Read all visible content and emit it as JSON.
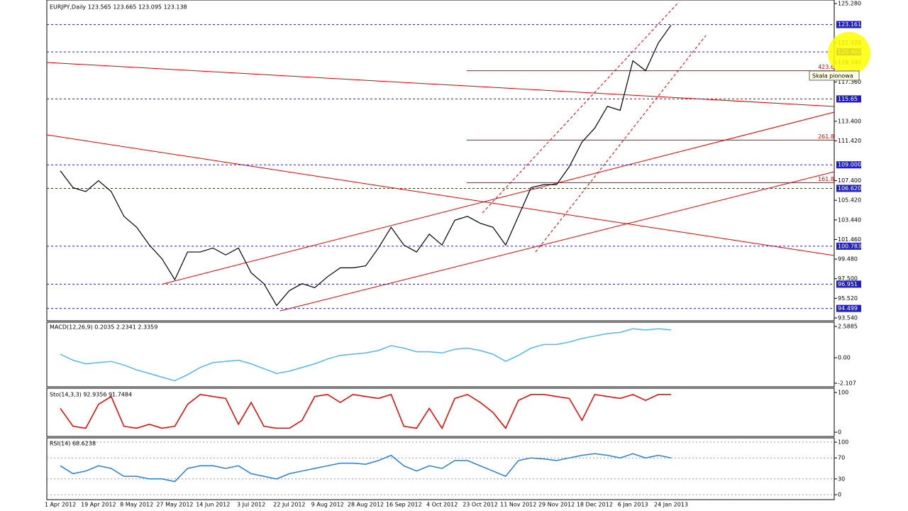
{
  "chart_data": [
    {
      "type": "line",
      "title": "EURJPY,Daily  123.565 123.665 123.095 123.138",
      "color": "#000000",
      "categories": [
        "1 Apr 2012",
        null,
        null,
        "19 Apr 2012",
        null,
        null,
        "8 May 2012",
        null,
        null,
        "27 May 2012",
        null,
        null,
        "14 Jun 2012",
        null,
        null,
        "3 Jul 2012",
        null,
        null,
        "22 Jul 2012",
        null,
        null,
        "9 Aug 2012",
        null,
        null,
        "28 Aug 2012",
        null,
        null,
        "16 Sep 2012",
        null,
        null,
        "4 Oct 2012",
        null,
        null,
        "23 Oct 2012",
        null,
        null,
        "11 Nov 2012",
        null,
        null,
        "29 Nov 2012",
        null,
        null,
        "18 Dec 2012",
        null,
        null,
        "6 Jan 2013",
        null,
        null,
        "24 Jan 2013"
      ],
      "values": [
        108.4,
        106.7,
        106.3,
        107.4,
        106.3,
        103.8,
        102.7,
        100.9,
        99.5,
        97.4,
        100.2,
        100.2,
        100.6,
        99.9,
        100.6,
        98.1,
        97.0,
        94.8,
        96.3,
        97.0,
        96.6,
        97.7,
        98.6,
        98.6,
        98.8,
        100.6,
        102.7,
        100.9,
        100.2,
        102.0,
        100.9,
        103.4,
        103.8,
        103.1,
        102.7,
        100.9,
        103.8,
        106.7,
        107.0,
        107.0,
        108.8,
        111.3,
        112.7,
        114.9,
        114.5,
        119.5,
        118.5,
        121.3,
        123.1
      ],
      "ylim": [
        93.54,
        125.28
      ],
      "yticks": [
        {
          "value": 125.28,
          "label": "125.280"
        },
        {
          "value": 121.32,
          "label": "121.320"
        },
        {
          "value": 119.34,
          "label": "119.340"
        },
        {
          "value": 117.36,
          "label": "117.360"
        },
        {
          "value": 113.4,
          "label": "113.400"
        },
        {
          "value": 111.42,
          "label": "111.420"
        },
        {
          "value": 107.4,
          "label": "107.400"
        },
        {
          "value": 105.42,
          "label": "105.420"
        },
        {
          "value": 103.44,
          "label": "103.440"
        },
        {
          "value": 101.46,
          "label": "101.460"
        },
        {
          "value": 99.48,
          "label": "99.480"
        },
        {
          "value": 97.5,
          "label": "97.500"
        },
        {
          "value": 95.52,
          "label": "95.520"
        },
        {
          "value": 93.54,
          "label": "93.540"
        }
      ],
      "levels": [
        123.161,
        120.402,
        115.65,
        {
          "value": 109.0,
          "label": "109.000"
        },
        {
          "value": 106.62,
          "label": "106.620"
        },
        100.783,
        96.951,
        94.499
      ],
      "fibo": [
        {
          "value": 118.5,
          "label": "423.6"
        },
        {
          "value": 111.5,
          "label": "261.8"
        },
        {
          "value": 107.2,
          "label": "161.8"
        }
      ],
      "tooltip": "Skala pionowa"
    },
    {
      "type": "line",
      "title": "MACD(12,26,9) 0.2035 2.2341 2.3359",
      "color": "#57b7e6",
      "values": [
        0.3,
        -0.2,
        -0.5,
        -0.4,
        -0.3,
        -0.6,
        -1.0,
        -1.3,
        -1.6,
        -1.9,
        -1.4,
        -0.8,
        -0.4,
        -0.3,
        -0.2,
        -0.5,
        -0.9,
        -1.3,
        -1.1,
        -0.8,
        -0.5,
        -0.1,
        0.2,
        0.3,
        0.4,
        0.6,
        1.0,
        0.8,
        0.5,
        0.5,
        0.4,
        0.7,
        0.8,
        0.6,
        0.3,
        -0.3,
        0.2,
        0.8,
        1.1,
        1.1,
        1.3,
        1.6,
        1.8,
        2.0,
        2.1,
        2.4,
        2.3,
        2.4,
        2.3
      ],
      "ylim": [
        -2.107,
        2.5885
      ],
      "yticks": [
        2.5885,
        {
          "value": 0,
          "label": "0.00"
        },
        -2.107
      ]
    },
    {
      "type": "line",
      "title": "Sto(14,3,3) 92.9356 91.7484",
      "color": "#e00000",
      "values": [
        60,
        15,
        10,
        70,
        90,
        15,
        10,
        20,
        10,
        15,
        70,
        95,
        90,
        85,
        20,
        75,
        15,
        10,
        10,
        30,
        90,
        95,
        75,
        95,
        90,
        85,
        95,
        15,
        10,
        60,
        10,
        85,
        95,
        75,
        50,
        10,
        80,
        95,
        95,
        90,
        85,
        30,
        95,
        90,
        85,
        95,
        80,
        95,
        95
      ],
      "ylim": [
        0,
        100
      ],
      "yticks": [
        100,
        0
      ]
    },
    {
      "type": "line",
      "title": "RSI(14) 68.6238",
      "color": "#2a7fd0",
      "values": [
        55,
        40,
        45,
        55,
        50,
        35,
        35,
        30,
        30,
        25,
        50,
        55,
        55,
        50,
        55,
        40,
        35,
        30,
        40,
        45,
        50,
        55,
        60,
        60,
        58,
        65,
        75,
        55,
        45,
        55,
        50,
        65,
        65,
        55,
        45,
        35,
        65,
        70,
        68,
        65,
        70,
        75,
        78,
        75,
        70,
        78,
        70,
        75,
        70
      ],
      "ylim": [
        0,
        100
      ],
      "yticks": [
        100,
        70,
        30,
        0
      ]
    }
  ]
}
